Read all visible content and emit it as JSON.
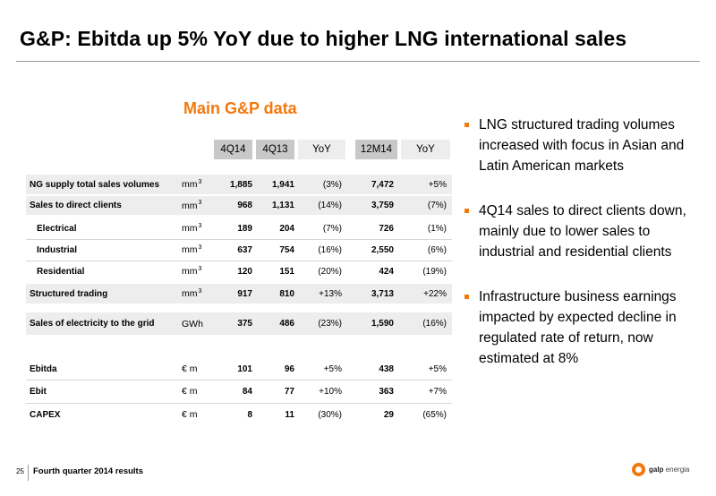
{
  "slide": {
    "title": "G&P: Ebitda up 5% YoY due to higher LNG international sales",
    "page_number": "25",
    "footer": "Fourth quarter 2014 results",
    "logo_text_bold": "galp",
    "logo_text": "energia"
  },
  "table": {
    "title": "Main G&P data",
    "headers": [
      "4Q14",
      "4Q13",
      "YoY",
      "12M14",
      "YoY"
    ],
    "rows": [
      {
        "label": "NG supply total sales volumes",
        "unit": "mm",
        "unit_sup": "3",
        "v1": "1,885",
        "v2": "1,941",
        "v3": "(3%)",
        "v4": "7,472",
        "v5": "+5%"
      },
      {
        "label": "Sales to direct clients",
        "unit": "mm",
        "unit_sup": "3",
        "v1": "968",
        "v2": "1,131",
        "v3": "(14%)",
        "v4": "3,759",
        "v5": "(7%)"
      },
      {
        "label": "Electrical",
        "unit": "mm",
        "unit_sup": "3",
        "v1": "189",
        "v2": "204",
        "v3": "(7%)",
        "v4": "726",
        "v5": "(1%)"
      },
      {
        "label": "Industrial",
        "unit": "mm",
        "unit_sup": "3",
        "v1": "637",
        "v2": "754",
        "v3": "(16%)",
        "v4": "2,550",
        "v5": "(6%)"
      },
      {
        "label": "Residential",
        "unit": "mm",
        "unit_sup": "3",
        "v1": "120",
        "v2": "151",
        "v3": "(20%)",
        "v4": "424",
        "v5": "(19%)"
      },
      {
        "label": "Structured trading",
        "unit": "mm",
        "unit_sup": "3",
        "v1": "917",
        "v2": "810",
        "v3": "+13%",
        "v4": "3,713",
        "v5": "+22%"
      },
      {
        "label": "Sales of electricity to the grid",
        "unit": "GWh",
        "unit_sup": "",
        "v1": "375",
        "v2": "486",
        "v3": "(23%)",
        "v4": "1,590",
        "v5": "(16%)"
      },
      {
        "label": "Ebitda",
        "unit": "€ m",
        "unit_sup": "",
        "v1": "101",
        "v2": "96",
        "v3": "+5%",
        "v4": "438",
        "v5": "+5%"
      },
      {
        "label": "Ebit",
        "unit": "€ m",
        "unit_sup": "",
        "v1": "84",
        "v2": "77",
        "v3": "+10%",
        "v4": "363",
        "v5": "+7%"
      },
      {
        "label": "CAPEX",
        "unit": "€ m",
        "unit_sup": "",
        "v1": "8",
        "v2": "11",
        "v3": "(30%)",
        "v4": "29",
        "v5": "(65%)"
      }
    ]
  },
  "bullets": [
    "LNG structured trading volumes increased with focus in Asian and Latin American markets",
    "4Q14 sales to direct clients down, mainly due to lower sales to industrial and residential clients",
    "Infrastructure business earnings impacted by expected decline in regulated rate of return, now estimated at 8%"
  ],
  "colors": {
    "accent": "#f2790e",
    "header_grey": "#c8c8c8",
    "row_shade": "#ededed"
  }
}
